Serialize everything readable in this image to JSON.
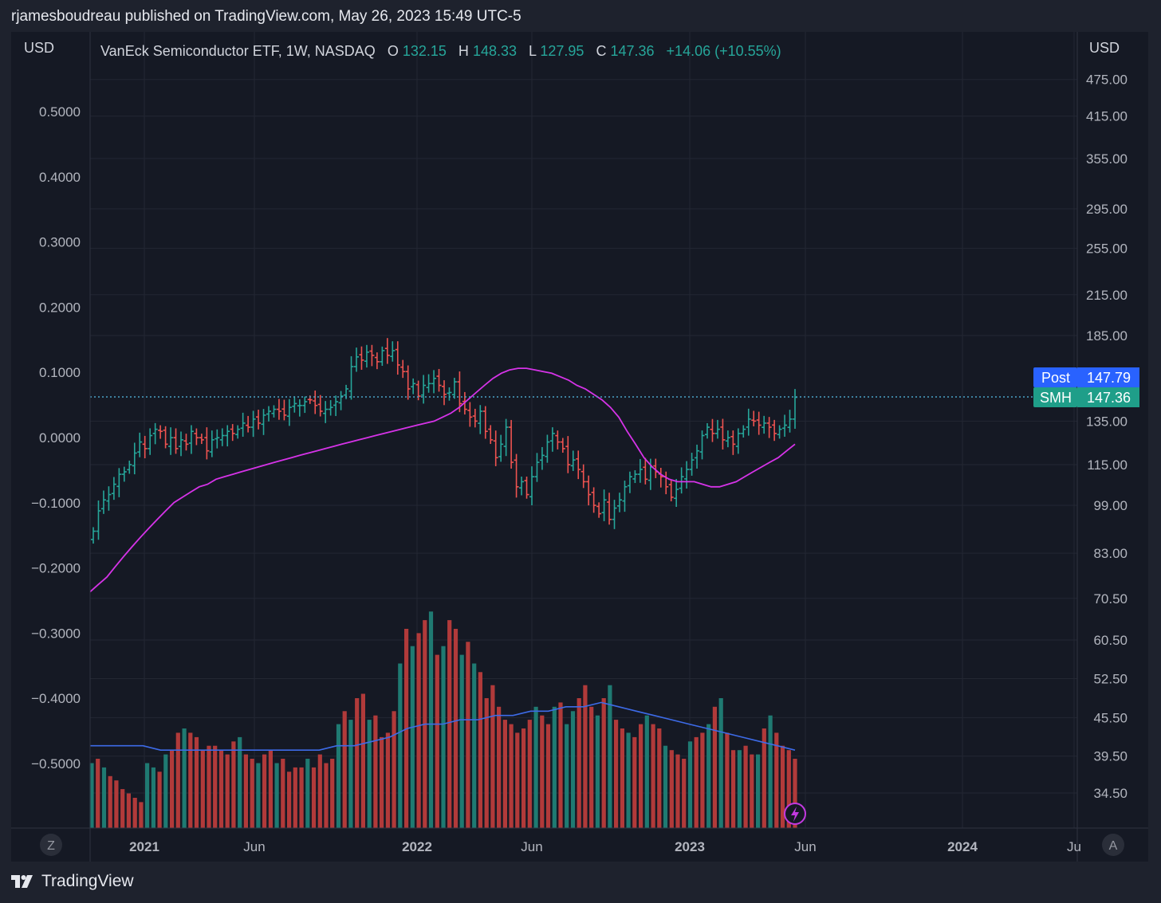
{
  "header": {
    "publisher_line": "rjamesboudreau published on TradingView.com, May 26, 2023 15:49 UTC-5"
  },
  "legend": {
    "symbol_desc": "VanEck Semiconductor ETF, 1W, NASDAQ",
    "o_label": "O",
    "o_value": "132.15",
    "h_label": "H",
    "h_value": "148.33",
    "l_label": "L",
    "l_value": "127.95",
    "c_label": "C",
    "c_value": "147.36",
    "change": "+14.06 (+10.55%)"
  },
  "axes": {
    "left_currency": "USD",
    "right_currency": "USD",
    "left_ticks": [
      "0.5000",
      "0.4000",
      "0.3000",
      "0.2000",
      "0.1000",
      "0.0000",
      "−0.1000",
      "−0.2000",
      "−0.3000",
      "−0.4000",
      "−0.5000"
    ],
    "right_ticks": [
      "475.00",
      "415.00",
      "355.00",
      "295.00",
      "255.00",
      "215.00",
      "185.00",
      "135.00",
      "115.00",
      "99.00",
      "83.00",
      "70.50",
      "60.50",
      "52.50",
      "45.50",
      "39.50",
      "34.50"
    ],
    "x_ticks": [
      {
        "label": "2021",
        "bold": true
      },
      {
        "label": "Jun",
        "bold": false
      },
      {
        "label": "2022",
        "bold": true
      },
      {
        "label": "Jun",
        "bold": false
      },
      {
        "label": "2023",
        "bold": true
      },
      {
        "label": "Jun",
        "bold": false
      },
      {
        "label": "2024",
        "bold": true
      },
      {
        "label": "Ju",
        "bold": false
      }
    ],
    "z_button": "Z",
    "a_button": "A"
  },
  "price_labels": {
    "post_name": "Post",
    "post_value": "147.79",
    "smh_name": "SMH",
    "smh_value": "147.36"
  },
  "colors": {
    "up": "#26a69a",
    "down": "#ef5350",
    "vol_up": "#1f7a72",
    "vol_down": "#b13a3a",
    "ma_price": "#d633e8",
    "ma_volume": "#3d6be8",
    "post_bg": "#2962ff",
    "smh_bg": "#1f9e89"
  },
  "chart_data": {
    "type": "ohlc",
    "title": "VanEck Semiconductor ETF, 1W, NASDAQ",
    "x_range": [
      "2020-11",
      "2024-07"
    ],
    "price_scale": "log",
    "last_close": 147.36,
    "post_market": 147.79,
    "ohlc_closes_approx": [
      90,
      97,
      101,
      103,
      107,
      111,
      112,
      115,
      120,
      125,
      122,
      128,
      131,
      130,
      124,
      127,
      122,
      126,
      124,
      130,
      127,
      126,
      121,
      126,
      127,
      128,
      130,
      129,
      131,
      134,
      132,
      136,
      134,
      138,
      140,
      141,
      140,
      138,
      142,
      144,
      143,
      145,
      146,
      143,
      140,
      141,
      142,
      145,
      148,
      152,
      165,
      171,
      169,
      174,
      172,
      168,
      175,
      172,
      175,
      166,
      162,
      152,
      155,
      148,
      154,
      155,
      158,
      154,
      149,
      150,
      156,
      144,
      141,
      137,
      135,
      140,
      130,
      126,
      118,
      124,
      132,
      116,
      106,
      108,
      103,
      110,
      116,
      119,
      125,
      129,
      125,
      122,
      115,
      117,
      113,
      108,
      103,
      99,
      96,
      101,
      94,
      98,
      101,
      106,
      110,
      111,
      113,
      109,
      114,
      112,
      110,
      106,
      102,
      105,
      110,
      113,
      117,
      121,
      128,
      132,
      129,
      131,
      126,
      127,
      124,
      129,
      131,
      136,
      135,
      133,
      134,
      132,
      129,
      131,
      133,
      136,
      147.36
    ],
    "sma_price_approx": [
      72,
      74,
      76,
      79,
      82,
      85,
      88,
      91,
      94,
      97,
      100,
      102,
      104,
      106,
      107,
      109,
      110,
      111,
      112,
      113,
      114,
      115,
      116,
      117,
      118,
      119,
      120,
      121,
      122,
      123,
      124,
      125,
      126,
      127,
      128,
      129,
      130,
      131,
      132,
      133,
      134,
      135,
      137,
      139,
      142,
      146,
      150,
      154,
      158,
      161,
      163,
      164,
      164,
      163,
      162,
      161,
      159,
      157,
      154,
      152,
      149,
      146,
      142,
      137,
      130,
      124,
      118,
      114,
      111,
      109,
      108,
      108,
      108,
      107,
      106,
      106,
      107,
      108,
      110,
      112,
      114,
      116,
      118,
      121,
      124
    ],
    "volume_M_approx": [
      37,
      38,
      36,
      34,
      33,
      31,
      30,
      29,
      28,
      37,
      36,
      35,
      39,
      40,
      44,
      45,
      44,
      43,
      40,
      41,
      41,
      40,
      39,
      42,
      43,
      39,
      38,
      37,
      39,
      40,
      37,
      38,
      35,
      36,
      36,
      38,
      36,
      39,
      37,
      38,
      46,
      49,
      47,
      52,
      53,
      47,
      48,
      43,
      44,
      49,
      60,
      68,
      64,
      67,
      70,
      72,
      62,
      64,
      70,
      68,
      62,
      65,
      60,
      58,
      52,
      55,
      50,
      47,
      46,
      44,
      45,
      47,
      50,
      48,
      46,
      50,
      51,
      46,
      49,
      52,
      55,
      50,
      48,
      52,
      55,
      47,
      45,
      44,
      43,
      46,
      48,
      46,
      45,
      41,
      40,
      39,
      38,
      42,
      43,
      44,
      46,
      50,
      52,
      44,
      40,
      40,
      41,
      39,
      39,
      45,
      48,
      44,
      41,
      40,
      38
    ],
    "sma_volume_approx": [
      41,
      41,
      41,
      41,
      40,
      40,
      40,
      40,
      40,
      40,
      40,
      40,
      40,
      40,
      41,
      41,
      42,
      43,
      45,
      46,
      46,
      47,
      47,
      48,
      48,
      49,
      49,
      50,
      50,
      51,
      50,
      49,
      48,
      47,
      46,
      45,
      44,
      43,
      42,
      41,
      40
    ]
  }
}
